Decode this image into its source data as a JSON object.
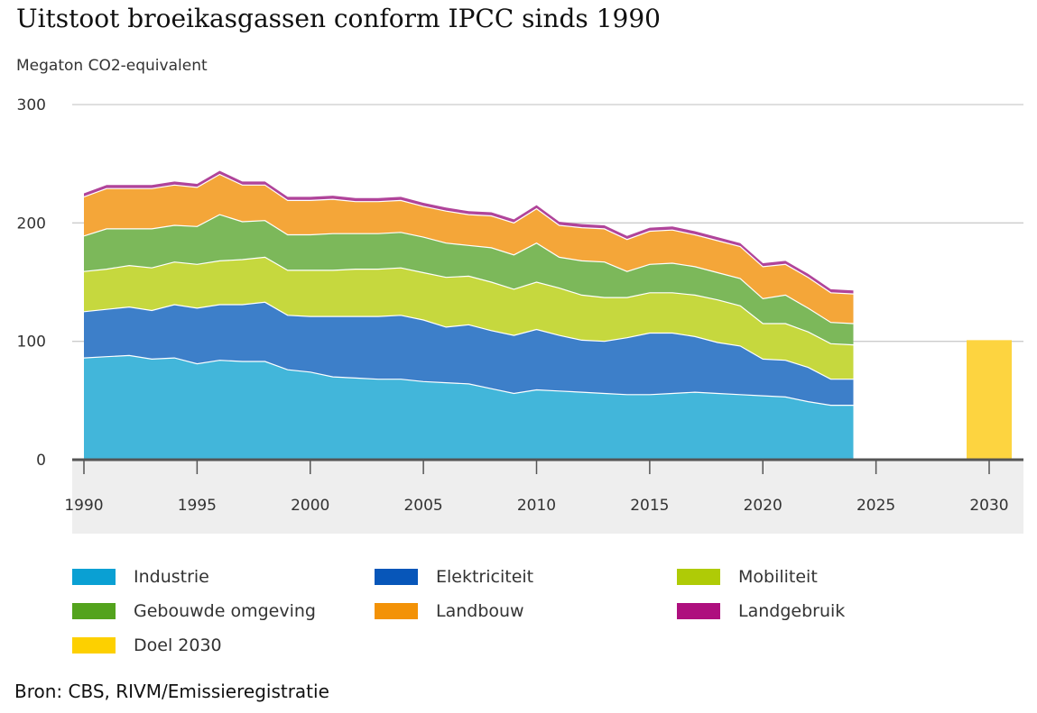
{
  "page": {
    "title": "Uitstoot broeikasgassen conform IPCC sinds 1990",
    "unit_label": "Megaton CO2-equivalent",
    "source": "Bron: CBS, RIVM/Emissieregistratie"
  },
  "chart_data": {
    "type": "area",
    "stacked": true,
    "title": "Uitstoot broeikasgassen conform IPCC sinds 1990",
    "ylabel": "Megaton CO2-equivalent",
    "xlim": [
      1989.5,
      2031.5
    ],
    "ylim": [
      0,
      300
    ],
    "yticks": [
      0,
      100,
      200,
      300
    ],
    "xticks": [
      1990,
      1995,
      2000,
      2005,
      2010,
      2015,
      2020,
      2025,
      2030
    ],
    "x": [
      1990,
      1991,
      1992,
      1993,
      1994,
      1995,
      1996,
      1997,
      1998,
      1999,
      2000,
      2001,
      2002,
      2003,
      2004,
      2005,
      2006,
      2007,
      2008,
      2009,
      2010,
      2011,
      2012,
      2013,
      2014,
      2015,
      2016,
      2017,
      2018,
      2019,
      2020,
      2021,
      2022,
      2023,
      2024
    ],
    "series": [
      {
        "name": "Industrie",
        "color": "#42b6da",
        "values": [
          86,
          87,
          88,
          85,
          86,
          81,
          84,
          83,
          83,
          76,
          74,
          70,
          69,
          68,
          68,
          66,
          65,
          64,
          60,
          56,
          59,
          58,
          57,
          56,
          55,
          55,
          56,
          57,
          56,
          55,
          54,
          53,
          49,
          46,
          46
        ]
      },
      {
        "name": "Elektriciteit",
        "color": "#3d7fc9",
        "values": [
          39,
          40,
          41,
          41,
          45,
          47,
          47,
          48,
          50,
          46,
          47,
          51,
          52,
          53,
          54,
          52,
          47,
          50,
          49,
          49,
          51,
          47,
          44,
          44,
          48,
          52,
          51,
          47,
          43,
          41,
          31,
          31,
          29,
          22,
          22
        ]
      },
      {
        "name": "Mobiliteit",
        "color": "#c6d83e",
        "values": [
          34,
          34,
          35,
          36,
          36,
          37,
          37,
          38,
          38,
          38,
          39,
          39,
          40,
          40,
          40,
          40,
          42,
          41,
          41,
          39,
          40,
          40,
          38,
          37,
          34,
          34,
          34,
          35,
          36,
          34,
          30,
          31,
          30,
          30,
          29
        ]
      },
      {
        "name": "Gebouwde omgeving",
        "color": "#7cb85a",
        "values": [
          30,
          34,
          31,
          33,
          31,
          32,
          39,
          32,
          31,
          30,
          30,
          31,
          30,
          30,
          30,
          30,
          29,
          26,
          29,
          29,
          33,
          26,
          29,
          30,
          22,
          24,
          25,
          24,
          23,
          23,
          21,
          24,
          20,
          18,
          18
        ]
      },
      {
        "name": "Landbouw",
        "color": "#f4a639",
        "values": [
          33,
          34,
          34,
          34,
          34,
          33,
          34,
          31,
          30,
          29,
          29,
          29,
          27,
          27,
          27,
          26,
          27,
          26,
          27,
          27,
          29,
          27,
          28,
          28,
          27,
          28,
          28,
          27,
          27,
          27,
          27,
          26,
          26,
          25,
          25
        ]
      },
      {
        "name": "Landgebruik",
        "color": "#b0449a",
        "values": [
          3,
          3,
          3,
          3,
          3,
          3,
          3,
          3,
          3,
          3,
          3,
          3,
          3,
          3,
          3,
          3,
          3,
          3,
          3,
          3,
          3,
          3,
          3,
          3,
          3,
          3,
          3,
          3,
          3,
          3,
          3,
          3,
          3,
          3,
          3
        ]
      }
    ],
    "target": {
      "name": "Doel 2030",
      "year": 2030,
      "value": 101,
      "color": "#fdd440"
    }
  },
  "legend": [
    {
      "label": "Industrie",
      "color": "#0aa0d3"
    },
    {
      "label": "Elektriciteit",
      "color": "#0756b9"
    },
    {
      "label": "Mobiliteit",
      "color": "#afcb06"
    },
    {
      "label": "Gebouwde omgeving",
      "color": "#53a31d"
    },
    {
      "label": "Landbouw",
      "color": "#f39207"
    },
    {
      "label": "Landgebruik",
      "color": "#ae0f7e"
    },
    {
      "label": "Doel 2030",
      "color": "#fdd000"
    }
  ]
}
